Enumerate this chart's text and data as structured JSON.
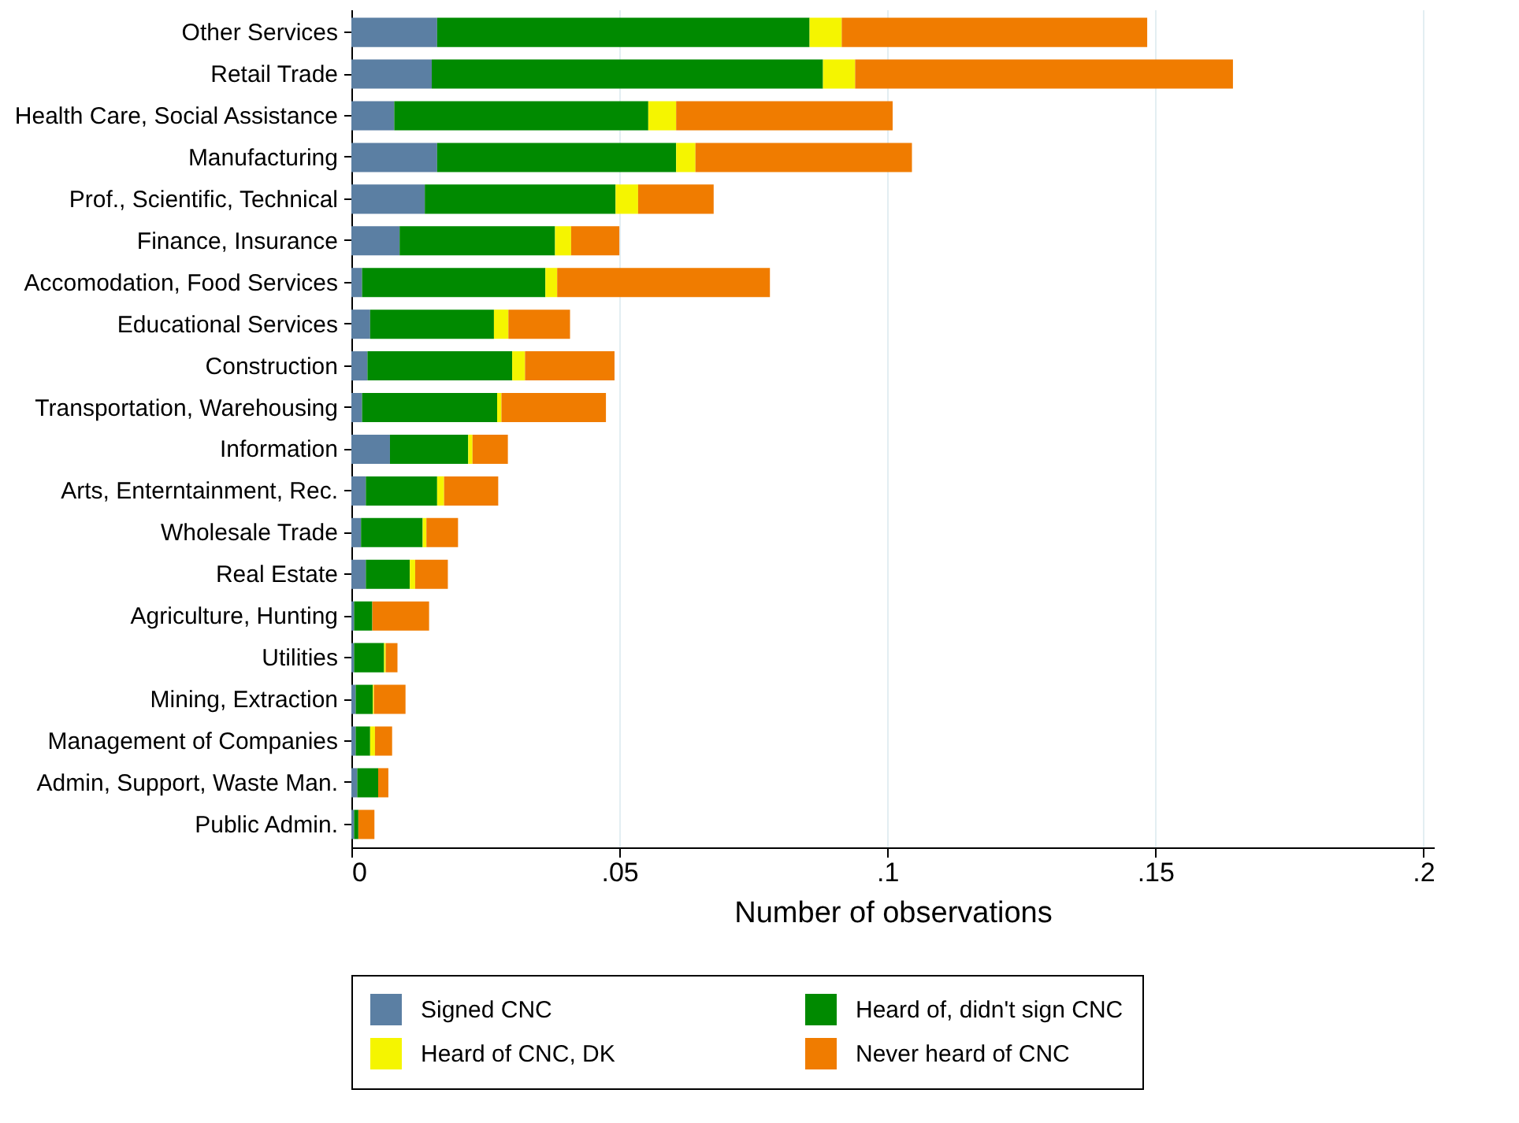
{
  "chart_data": {
    "type": "bar",
    "orientation": "horizontal",
    "stacked": true,
    "xlabel": "Number of observations",
    "categories": [
      "Other Services",
      "Retail Trade",
      "Health Care, Social Assistance",
      "Manufacturing",
      "Prof., Scientific, Technical",
      "Finance, Insurance",
      "Accomodation, Food Services",
      "Educational Services",
      "Construction",
      "Transportation, Warehousing",
      "Information",
      "Arts, Enterntainment, Rec.",
      "Wholesale Trade",
      "Real Estate",
      "Agriculture, Hunting",
      "Utilities",
      "Mining, Extraction",
      "Management of Companies",
      "Admin, Support, Waste Man.",
      "Public Admin."
    ],
    "series": [
      {
        "name": "Signed CNC",
        "color": "#5b7fa3",
        "values": [
          0.016,
          0.015,
          0.008,
          0.016,
          0.0137,
          0.009,
          0.002,
          0.0035,
          0.003,
          0.002,
          0.0072,
          0.0027,
          0.0018,
          0.0027,
          0.0005,
          0.0005,
          0.0008,
          0.0008,
          0.0011,
          0.0005
        ]
      },
      {
        "name": "Heard of, didn't sign CNC",
        "color": "#008a00",
        "values": [
          0.0695,
          0.073,
          0.0474,
          0.0446,
          0.0356,
          0.029,
          0.0342,
          0.0231,
          0.027,
          0.0252,
          0.0146,
          0.0133,
          0.0115,
          0.0082,
          0.0034,
          0.0056,
          0.0032,
          0.0027,
          0.0039,
          0.0008
        ]
      },
      {
        "name": "Heard of CNC, DK",
        "color": "#f5f500",
        "values": [
          0.006,
          0.006,
          0.0052,
          0.0036,
          0.0042,
          0.003,
          0.0022,
          0.0027,
          0.0024,
          0.0008,
          0.0008,
          0.0013,
          0.0007,
          0.001,
          0,
          0.0003,
          0.0002,
          0.0009,
          0,
          0
        ]
      },
      {
        "name": "Never heard of CNC",
        "color": "#f07c00",
        "values": [
          0.057,
          0.0705,
          0.0404,
          0.0404,
          0.0141,
          0.009,
          0.0397,
          0.0115,
          0.0167,
          0.0195,
          0.0066,
          0.0101,
          0.0059,
          0.0061,
          0.0106,
          0.0022,
          0.0059,
          0.0032,
          0.0019,
          0.003
        ]
      }
    ],
    "xlim": [
      0,
      0.202
    ],
    "xticks": [
      {
        "value": 0,
        "label": "0"
      },
      {
        "value": 0.05,
        "label": ".05"
      },
      {
        "value": 0.1,
        "label": ".1"
      },
      {
        "value": 0.15,
        "label": ".15"
      },
      {
        "value": 0.2,
        "label": ".2"
      }
    ],
    "grid": "x",
    "legend": "bottom"
  }
}
